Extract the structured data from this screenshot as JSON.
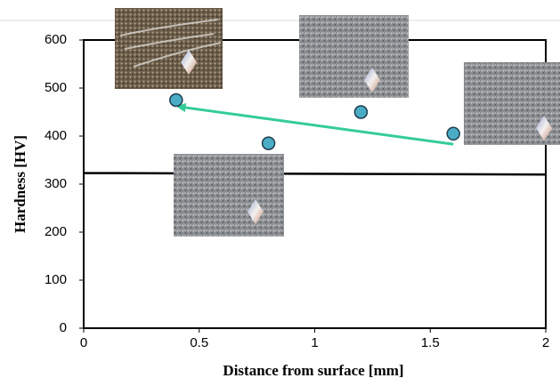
{
  "chart_data": {
    "type": "scatter",
    "x": [
      0.4,
      0.8,
      1.2,
      1.6
    ],
    "values": [
      475,
      385,
      450,
      405
    ],
    "color": "#4bacc6",
    "xlabel": "Distance from surface [mm]",
    "ylabel": "Hardness [HV]",
    "xlim": [
      0,
      2
    ],
    "xticks": [
      0,
      0.5,
      1,
      1.5,
      2
    ],
    "ylim": [
      0,
      600
    ],
    "yticks": [
      0,
      100,
      200,
      300,
      400,
      500,
      600
    ],
    "line": {
      "x": [
        0,
        2
      ],
      "values": [
        323,
        320
      ],
      "color": "#000000"
    },
    "arrow": {
      "x": [
        1.6,
        0.4
      ],
      "values": [
        383,
        462
      ],
      "color": "#33cc99"
    }
  }
}
